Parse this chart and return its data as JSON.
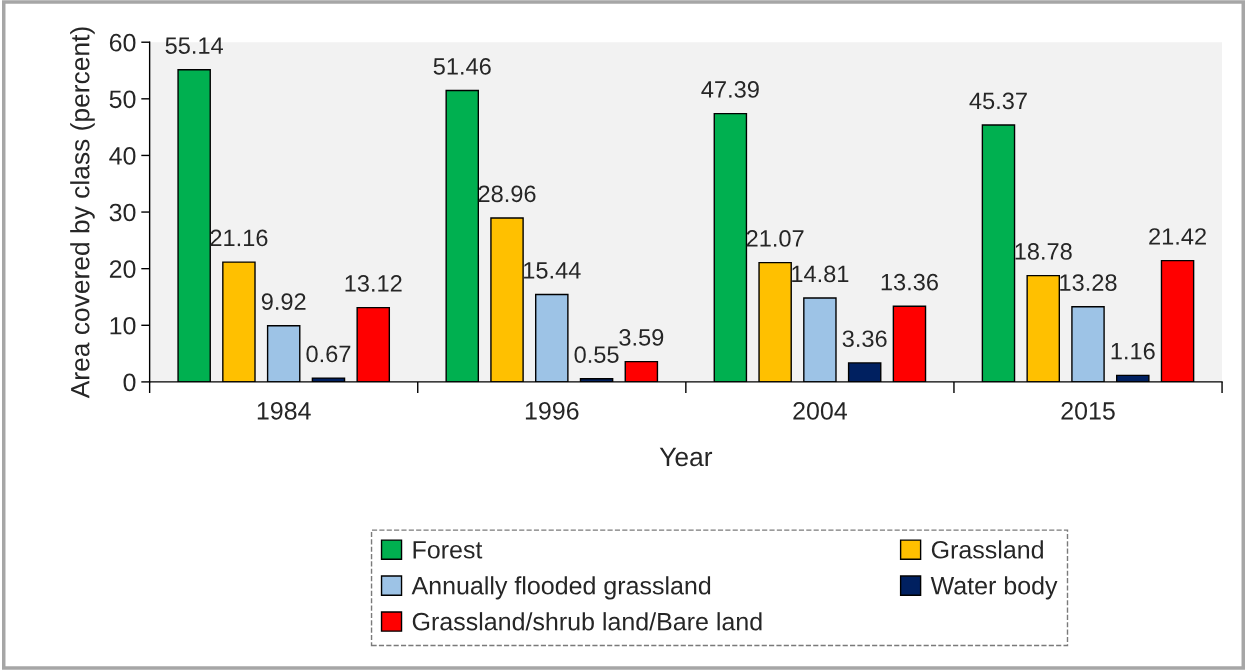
{
  "chart_data": {
    "type": "bar",
    "xlabel": "Year",
    "ylabel": "Area covered by class (percent)",
    "categories": [
      "1984",
      "1996",
      "2004",
      "2015"
    ],
    "series": [
      {
        "name": "Forest",
        "color": "#00b050",
        "values": [
          55.14,
          51.46,
          47.39,
          45.37
        ]
      },
      {
        "name": "Grassland",
        "color": "#ffc000",
        "values": [
          21.16,
          28.96,
          21.07,
          18.78
        ]
      },
      {
        "name": "Annually flooded grassland",
        "color": "#9dc3e6",
        "values": [
          9.92,
          15.44,
          14.81,
          13.28
        ]
      },
      {
        "name": "Water body",
        "color": "#002060",
        "values": [
          0.67,
          0.55,
          3.36,
          1.16
        ]
      },
      {
        "name": "Grassland/shrub land/Bare land",
        "color": "#ff0000",
        "values": [
          13.12,
          3.59,
          13.36,
          21.42
        ]
      }
    ],
    "ylim": [
      0,
      60
    ],
    "yticks": [
      0,
      10,
      20,
      30,
      40,
      50,
      60
    ],
    "data_labels": true,
    "grid": false,
    "legend": "bottom"
  }
}
